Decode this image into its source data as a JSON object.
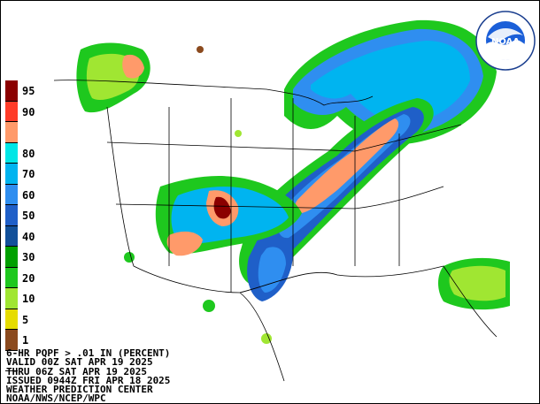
{
  "product": {
    "line1": "6-HR PQPF > .01 IN (PERCENT)",
    "line2": "VALID 00Z SAT APR 19 2025",
    "line3": "THRU 06Z SAT APR 19 2025",
    "line4": "ISSUED 0944Z FRI APR 18 2025",
    "line5": "WEATHER PREDICTION CENTER",
    "line6": "NOAA/NWS/NCEP/WPC"
  },
  "legend": [
    {
      "label": "95",
      "color": "#8b0000"
    },
    {
      "label": "90",
      "color": "#ff3c28"
    },
    {
      "label": "",
      "color": "#ff9a6a"
    },
    {
      "label": "80",
      "color": "#00e6e6"
    },
    {
      "label": "70",
      "color": "#00b4f0"
    },
    {
      "label": "60",
      "color": "#2f8ef0"
    },
    {
      "label": "50",
      "color": "#1f5fc8"
    },
    {
      "label": "40",
      "color": "#12509a"
    },
    {
      "label": "30",
      "color": "#00a000"
    },
    {
      "label": "20",
      "color": "#1ec81e"
    },
    {
      "label": "10",
      "color": "#a0e632"
    },
    {
      "label": "5",
      "color": "#e6dc00"
    },
    {
      "label": "1",
      "color": "#8b4a1e"
    },
    {
      "label": "",
      "color": "#ffffff"
    }
  ],
  "logo": {
    "text": "NOAA",
    "ring_text": "NATIONAL OCEANIC AND ATMOSPHERIC ADMINISTRATION"
  }
}
